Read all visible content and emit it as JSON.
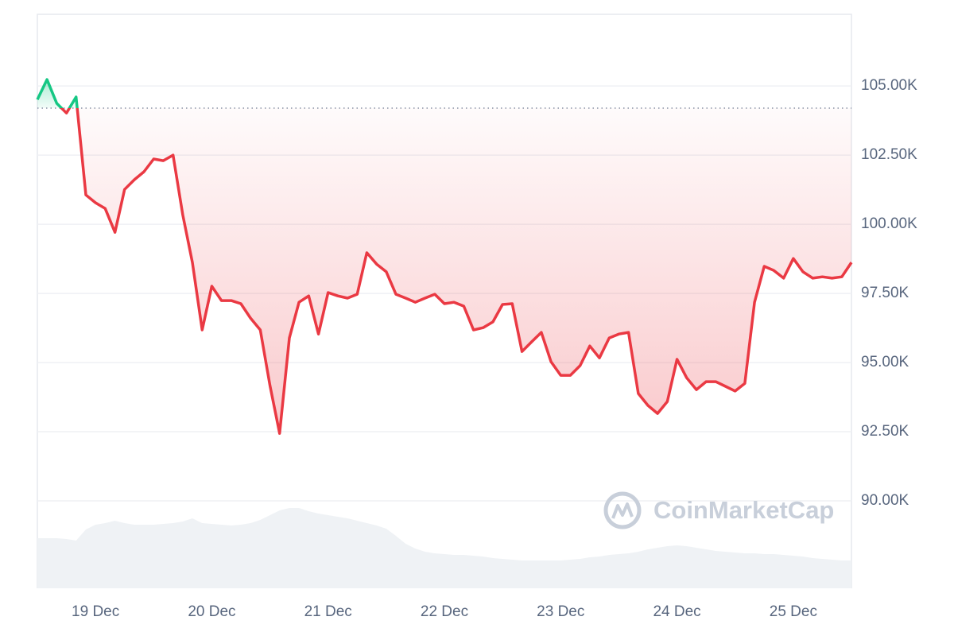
{
  "chart_data": {
    "type": "line",
    "watermark": "CoinMarketCap",
    "x": [
      18.5,
      18.583,
      18.667,
      18.75,
      18.833,
      18.917,
      19,
      19.083,
      19.167,
      19.25,
      19.333,
      19.417,
      19.5,
      19.583,
      19.667,
      19.75,
      19.833,
      19.917,
      20,
      20.083,
      20.167,
      20.25,
      20.333,
      20.417,
      20.5,
      20.583,
      20.667,
      20.75,
      20.833,
      20.917,
      21,
      21.083,
      21.167,
      21.25,
      21.333,
      21.417,
      21.5,
      21.583,
      21.667,
      21.75,
      21.833,
      21.917,
      22,
      22.083,
      22.167,
      22.25,
      22.333,
      22.417,
      22.5,
      22.583,
      22.667,
      22.75,
      22.833,
      22.917,
      23,
      23.083,
      23.167,
      23.25,
      23.333,
      23.417,
      23.5,
      23.583,
      23.667,
      23.75,
      23.833,
      23.917,
      24,
      24.083,
      24.167,
      24.25,
      24.333,
      24.417,
      24.5,
      24.583,
      24.667,
      24.75,
      24.833,
      24.917,
      25,
      25.083,
      25.167,
      25.25,
      25.333,
      25.417,
      25.5
    ],
    "series": [
      {
        "color": "#ea3943",
        "up_color": "#16c784",
        "values": [
          104510,
          105230,
          104370,
          104020,
          104600,
          101060,
          100780,
          100570,
          99710,
          101260,
          101610,
          101900,
          102360,
          102300,
          102500,
          100340,
          98620,
          96180,
          97760,
          97240,
          97240,
          97130,
          96610,
          96180,
          94170,
          92440,
          95890,
          97180,
          97410,
          96030,
          97530,
          97410,
          97330,
          97470,
          98970,
          98560,
          98280,
          97470,
          97330,
          97180,
          97330,
          97470,
          97130,
          97180,
          97040,
          96180,
          96260,
          96470,
          97100,
          97130,
          95400,
          95750,
          96090,
          95030,
          94540,
          94540,
          94890,
          95600,
          95170,
          95890,
          96030,
          96090,
          93880,
          93450,
          93160,
          93590,
          95120,
          94450,
          94020,
          94310,
          94310,
          94140,
          93970,
          94250,
          97180,
          98480,
          98330,
          98050,
          98760,
          98280,
          98050,
          98100,
          98050,
          98100,
          98620
        ]
      }
    ],
    "baseline": 104200,
    "volume": {
      "color": "#eff2f5",
      "ylim": [
        0,
        120
      ],
      "values": [
        63,
        63,
        63,
        62,
        60,
        74,
        80,
        82,
        85,
        82,
        80,
        80,
        80,
        81,
        82,
        84,
        88,
        82,
        81,
        80,
        79,
        80,
        82,
        86,
        92,
        98,
        101,
        101,
        97,
        94,
        92,
        90,
        88,
        85,
        82,
        79,
        75,
        66,
        56,
        50,
        46,
        44,
        43,
        42,
        42,
        41,
        40,
        38,
        37,
        36,
        35,
        35,
        35,
        35,
        35,
        36,
        37,
        39,
        40,
        42,
        43,
        44,
        46,
        49,
        51,
        53,
        54,
        53,
        51,
        49,
        47,
        46,
        45,
        44,
        44,
        43,
        43,
        42,
        41,
        40,
        38,
        37,
        36,
        35,
        35
      ]
    },
    "xlim": [
      18.5,
      25.5
    ],
    "xticks": [
      {
        "value": 19,
        "label": "19 Dec"
      },
      {
        "value": 20,
        "label": "20 Dec"
      },
      {
        "value": 21,
        "label": "21 Dec"
      },
      {
        "value": 22,
        "label": "22 Dec"
      },
      {
        "value": 23,
        "label": "23 Dec"
      },
      {
        "value": 24,
        "label": "24 Dec"
      },
      {
        "value": 25,
        "label": "25 Dec"
      }
    ],
    "ylim": [
      86840,
      107590
    ],
    "yticks": [
      {
        "value": 90000,
        "label": "90.00K"
      },
      {
        "value": 92500,
        "label": "92.50K"
      },
      {
        "value": 95000,
        "label": "95.00K"
      },
      {
        "value": 97500,
        "label": "97.50K"
      },
      {
        "value": 100000,
        "label": "100.00K"
      },
      {
        "value": 102500,
        "label": "102.50K"
      },
      {
        "value": 105000,
        "label": "105.00K"
      }
    ],
    "grid": true
  }
}
